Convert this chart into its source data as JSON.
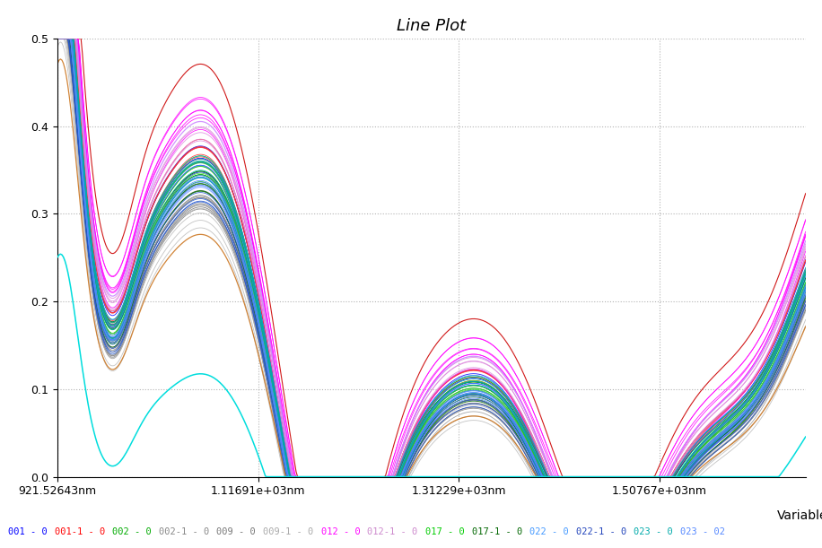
{
  "title": "Line Plot",
  "xlabel": "Variables",
  "xlim_start": 921.52643,
  "xlim_end": 1650.0,
  "ylim": [
    0,
    0.5
  ],
  "xtick_labels": [
    "921.52643nm",
    "1.11691e+03nm",
    "1.31229e+03nm",
    "1.50767e+03nm"
  ],
  "xtick_positions": [
    921.52643,
    1116.91,
    1312.29,
    1507.67
  ],
  "ytick_values": [
    0,
    0.1,
    0.2,
    0.3,
    0.4,
    0.5
  ],
  "title_fontsize": 13,
  "axis_label_fontsize": 10,
  "tick_fontsize": 9,
  "legend_entries": [
    "001 - 0",
    "001-1 - 0",
    "002 - 0",
    "002-1 - 0",
    "009 - 0",
    "009-1 - 0",
    "012 - 0",
    "012-1 - 0",
    "017 - 0",
    "017-1 - 0",
    "022 - 0",
    "022-1 - 0",
    "023 - 0",
    "023 - 02"
  ],
  "legend_colors": [
    "#0000ff",
    "#ff0000",
    "#00aa00",
    "#888888",
    "#777777",
    "#aaaaaa",
    "#ff00ff",
    "#cc88cc",
    "#00cc00",
    "#006600",
    "#4499ff",
    "#2244bb",
    "#00aaaa",
    "#5588ff"
  ]
}
